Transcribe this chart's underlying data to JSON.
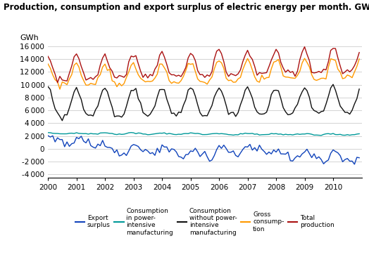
{
  "title": "Production, consumption and export surplus of electric energy per month. GWh",
  "ylabel": "GWh",
  "ylim": [
    -4500,
    16500
  ],
  "yticks": [
    -4000,
    -2000,
    0,
    2000,
    4000,
    6000,
    8000,
    10000,
    12000,
    14000,
    16000
  ],
  "colors": {
    "export_surplus": "#1144bb",
    "consumption_power": "#009999",
    "consumption_no_power": "#111111",
    "gross_consumption": "#FF9900",
    "total_production": "#aa1111"
  },
  "legend_labels": [
    "Export\nsurplus",
    "Consumption\nin power-\nintensive\nmanufacturing",
    "Consumption\nwithout power-\nintensive\nmanufacturing",
    "Gross\nconsump-\ntion",
    "Total\nproduction"
  ],
  "background_color": "#ffffff",
  "grid_color": "#cccccc"
}
